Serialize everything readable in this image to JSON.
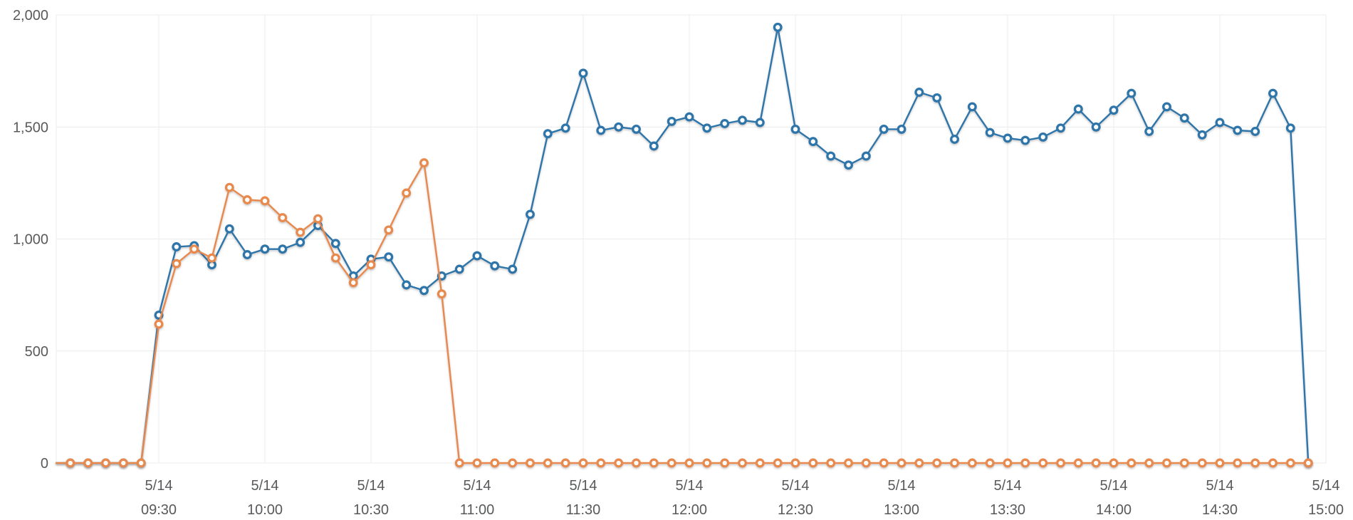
{
  "chart_data": {
    "type": "line",
    "title": "",
    "xlabel": "",
    "ylabel": "",
    "grid": true,
    "legend": "none",
    "marker_style": "open-circle",
    "ylim": [
      0,
      2000
    ],
    "y_ticks": [
      0,
      500,
      1000,
      1500,
      2000
    ],
    "y_tick_labels": [
      "0",
      "500",
      "1,000",
      "1,500",
      "2,000"
    ],
    "x_tick_label_date": "5/14",
    "x_tick_labels": [
      "09:30",
      "10:00",
      "10:30",
      "11:00",
      "11:30",
      "12:00",
      "12:30",
      "13:00",
      "13:30",
      "14:00",
      "14:30",
      "15:00"
    ],
    "x_times": [
      "09:05",
      "09:10",
      "09:15",
      "09:20",
      "09:25",
      "09:30",
      "09:35",
      "09:40",
      "09:45",
      "09:50",
      "09:55",
      "10:00",
      "10:05",
      "10:10",
      "10:15",
      "10:20",
      "10:25",
      "10:30",
      "10:35",
      "10:40",
      "10:45",
      "10:50",
      "10:55",
      "11:00",
      "11:05",
      "11:10",
      "11:15",
      "11:20",
      "11:25",
      "11:30",
      "11:35",
      "11:40",
      "11:45",
      "11:50",
      "11:55",
      "12:00",
      "12:05",
      "12:10",
      "12:15",
      "12:20",
      "12:25",
      "12:30",
      "12:35",
      "12:40",
      "12:45",
      "12:50",
      "12:55",
      "13:00",
      "13:05",
      "13:10",
      "13:15",
      "13:20",
      "13:25",
      "13:30",
      "13:35",
      "13:40",
      "13:45",
      "13:50",
      "13:55",
      "14:00",
      "14:05",
      "14:10",
      "14:15",
      "14:20",
      "14:25",
      "14:30",
      "14:35",
      "14:40",
      "14:45",
      "14:50",
      "14:55"
    ],
    "series": [
      {
        "name": "blue-series",
        "color": "#2F74A9",
        "values": [
          0,
          0,
          0,
          0,
          0,
          660,
          965,
          970,
          885,
          1045,
          930,
          955,
          955,
          985,
          1060,
          980,
          835,
          910,
          920,
          795,
          770,
          835,
          865,
          925,
          880,
          865,
          1110,
          1470,
          1495,
          1740,
          1485,
          1500,
          1490,
          1415,
          1525,
          1545,
          1495,
          1515,
          1530,
          1520,
          1945,
          1490,
          1435,
          1370,
          1330,
          1370,
          1490,
          1490,
          1655,
          1630,
          1445,
          1590,
          1475,
          1450,
          1440,
          1455,
          1495,
          1580,
          1500,
          1575,
          1650,
          1480,
          1590,
          1540,
          1465,
          1520,
          1485,
          1480,
          1650,
          1495,
          0
        ]
      },
      {
        "name": "orange-series",
        "color": "#E8894E",
        "values": [
          0,
          0,
          0,
          0,
          0,
          620,
          890,
          955,
          915,
          1230,
          1175,
          1170,
          1095,
          1030,
          1090,
          915,
          805,
          885,
          1040,
          1205,
          1340,
          755,
          0,
          0,
          0,
          0,
          0,
          0,
          0,
          0,
          0,
          0,
          0,
          0,
          0,
          0,
          0,
          0,
          0,
          0,
          0,
          0,
          0,
          0,
          0,
          0,
          0,
          0,
          0,
          0,
          0,
          0,
          0,
          0,
          0,
          0,
          0,
          0,
          0,
          0,
          0,
          0,
          0,
          0,
          0,
          0,
          0,
          0,
          0,
          0,
          0
        ]
      }
    ]
  }
}
